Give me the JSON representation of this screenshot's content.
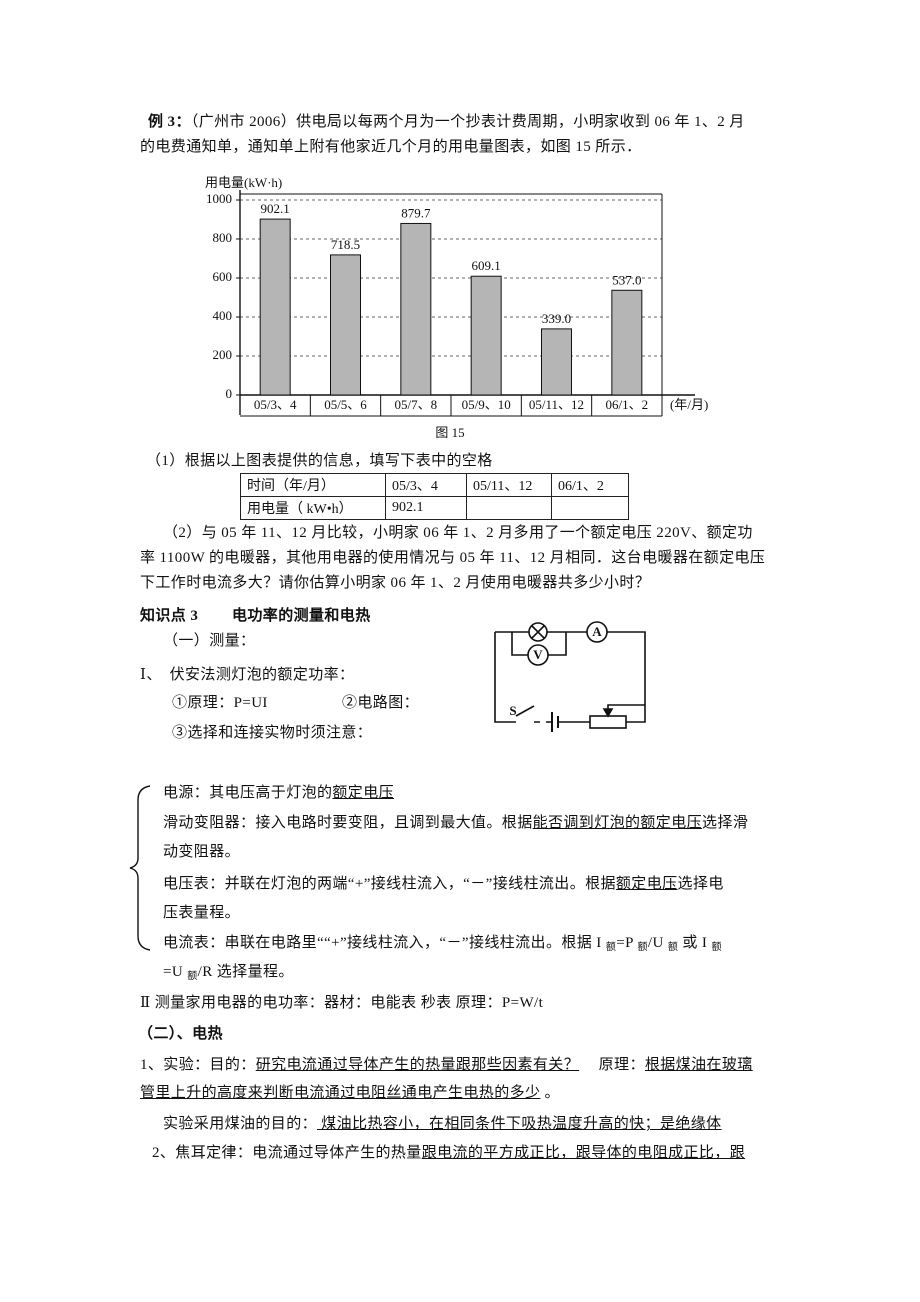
{
  "example": {
    "label": "例 3：",
    "lines": [
      "（广州市 2006）供电局以每两个月为一个抄表计费周期，小明家收到 06 年 1、2 月",
      "的电费通知单，通知单上附有他家近几个月的用电量图表，如图 15 所示．"
    ]
  },
  "chart_data": {
    "type": "bar",
    "y_label": "用电量(kW·h)",
    "x_label": "(年/月)",
    "caption": "图 15",
    "categories": [
      "05/3、4",
      "05/5、6",
      "05/7、8",
      "05/9、10",
      "05/11、12",
      "06/1、2"
    ],
    "values": [
      902.1,
      718.5,
      879.7,
      609.1,
      339.0,
      537.0
    ],
    "value_labels": [
      "902.1",
      "718.5",
      "879.7",
      "609.1",
      "339.0",
      "537.0"
    ],
    "color": "#b5b5b5",
    "ylim": [
      0,
      1000
    ],
    "yticks": [
      0,
      200,
      400,
      600,
      800,
      1000
    ],
    "grid": true
  },
  "question1": "（1）根据以上图表提供的信息，填写下表中的空格",
  "table": {
    "header": [
      "时间（年/月）",
      "05/3、4",
      "05/11、12",
      "06/1、2"
    ],
    "rows": [
      [
        "用电量（ kW•h）",
        "902.1"
      ]
    ]
  },
  "question2": [
    "（2）与 05 年 11、12 月比较，小明家 06 年 1、2 月多用了一个额定电压 220V、额定功",
    "率 1100W 的电暖器，其他用电器的使用情况与 05 年 11、12 月相同．这台电暖器在额定电压",
    "下工作时电流多大？请你估算小明家 06 年 1、2 月使用电暖器共多少小时？",
    ""
  ],
  "section3": {
    "label": "知识点 3",
    "title": "电功率的测量和电热",
    "part1": "（一）测量：",
    "method1": "Ⅰ、　伏安法测灯泡的额定功率：",
    "principle": "①原理：P=UI",
    "diagram": "②电路图：",
    "notice": "③选择和连接实物时须注意：",
    "method2": "Ⅱ  测量家用电器的电功率：器材：电能表  秒表  原理：P=W/t"
  },
  "circuit": {
    "ammeter": "A",
    "voltmeter": "V",
    "switch": "S"
  },
  "notes": [
    [
      "电源：其电压高于灯泡的",
      "额定电压"
    ],
    [
      "滑动变阻器：接入电路时要变阻，且调到最大值。根据",
      "能否调到灯泡的额定电压",
      "选择滑",
      "动变阻器。"
    ],
    [
      "电压表：并联在灯泡的两端“+”接线柱流入，“－”接线柱流出。根据",
      "额定电压",
      "选择电",
      "压表量程。"
    ],
    [
      "电流表：串联在电路里““+”接线柱流入，“－”接线柱流出。根据 I ",
      "额",
      "=P ",
      "额",
      "/U ",
      "额",
      "  或 I ",
      "额"
    ],
    [
      "=U ",
      "额",
      "/R  选择量程。"
    ]
  ],
  "heat": {
    "title": "（二）、电热",
    "lines": [
      [
        "1、实验：目的：",
        "研究电流通过导体产生的热量跟那些因素有关？",
        "　 原理：",
        "根据煤油在玻璃"
      ],
      [
        "管里上升的高度来判断电流通过电阻丝通电产生电热的多少",
        " 。"
      ],
      [
        "实验采用煤油的目的：",
        " 煤油比热容小，在相同条件下吸热温度升高的快；是绝缘体 "
      ],
      [
        "2、焦耳定律：电流通过导体产生的热量",
        "跟电流的平方成正比，跟导体的电阻成正比，跟"
      ]
    ]
  }
}
